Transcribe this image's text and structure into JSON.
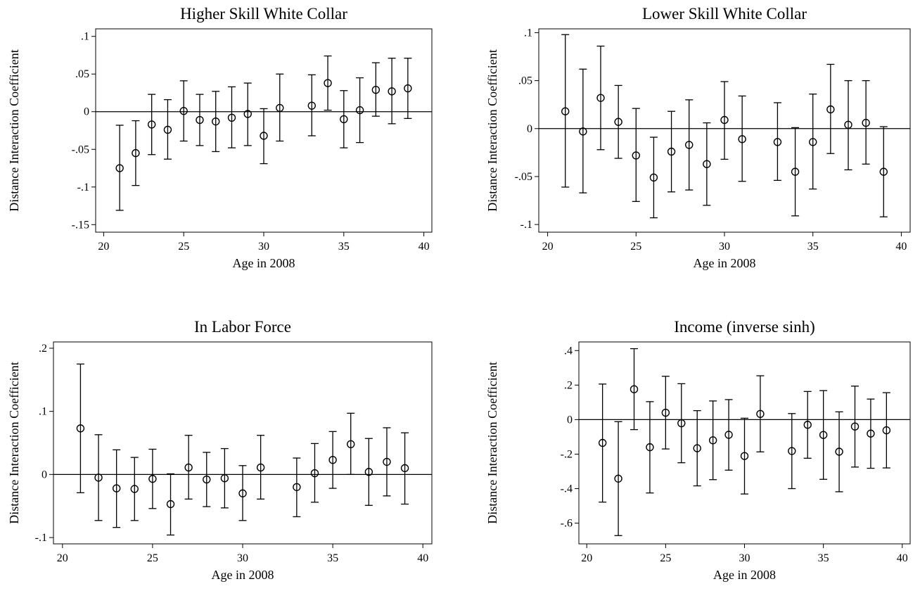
{
  "chart_data": [
    {
      "type": "scatter",
      "title": "Higher Skill White Collar",
      "xlabel": "Age in 2008",
      "ylabel": "Distance Interaction Coefficient",
      "xlim": [
        19.5,
        40.5
      ],
      "ylim": [
        -0.16,
        0.11
      ],
      "xticks": [
        20,
        25,
        30,
        35,
        40
      ],
      "xtick_labels": [
        "20",
        "25",
        "30",
        "35",
        "40"
      ],
      "yticks": [
        -0.15,
        -0.1,
        -0.05,
        0,
        0.05,
        0.1
      ],
      "ytick_labels": [
        "-.15",
        "-.1",
        "-.05",
        "0",
        ".05",
        ".1"
      ],
      "reference_line": 0,
      "points": [
        {
          "x": 21,
          "y": -0.075,
          "lo": -0.131,
          "hi": -0.018
        },
        {
          "x": 22,
          "y": -0.055,
          "lo": -0.098,
          "hi": -0.012
        },
        {
          "x": 23,
          "y": -0.017,
          "lo": -0.057,
          "hi": 0.023
        },
        {
          "x": 24,
          "y": -0.024,
          "lo": -0.063,
          "hi": 0.016
        },
        {
          "x": 25,
          "y": 0.001,
          "lo": -0.039,
          "hi": 0.041
        },
        {
          "x": 26,
          "y": -0.011,
          "lo": -0.045,
          "hi": 0.023
        },
        {
          "x": 27,
          "y": -0.013,
          "lo": -0.053,
          "hi": 0.027
        },
        {
          "x": 28,
          "y": -0.008,
          "lo": -0.048,
          "hi": 0.033
        },
        {
          "x": 29,
          "y": -0.003,
          "lo": -0.045,
          "hi": 0.038
        },
        {
          "x": 30,
          "y": -0.032,
          "lo": -0.069,
          "hi": 0.004
        },
        {
          "x": 31,
          "y": 0.005,
          "lo": -0.039,
          "hi": 0.05
        },
        {
          "x": 33,
          "y": 0.008,
          "lo": -0.032,
          "hi": 0.049
        },
        {
          "x": 34,
          "y": 0.038,
          "lo": 0.002,
          "hi": 0.074
        },
        {
          "x": 35,
          "y": -0.01,
          "lo": -0.048,
          "hi": 0.028
        },
        {
          "x": 36,
          "y": 0.002,
          "lo": -0.041,
          "hi": 0.045
        },
        {
          "x": 37,
          "y": 0.029,
          "lo": -0.006,
          "hi": 0.065
        },
        {
          "x": 38,
          "y": 0.027,
          "lo": -0.016,
          "hi": 0.071
        },
        {
          "x": 39,
          "y": 0.031,
          "lo": -0.009,
          "hi": 0.071
        }
      ]
    },
    {
      "type": "scatter",
      "title": "Lower Skill White Collar",
      "xlabel": "Age in 2008",
      "ylabel": "Distance Interaction Coefficient",
      "xlim": [
        19.5,
        40.5
      ],
      "ylim": [
        -0.108,
        0.104
      ],
      "xticks": [
        20,
        25,
        30,
        35,
        40
      ],
      "xtick_labels": [
        "20",
        "25",
        "30",
        "35",
        "40"
      ],
      "yticks": [
        -0.1,
        -0.05,
        0,
        0.05,
        0.1
      ],
      "ytick_labels": [
        "-.1",
        "-.05",
        "0",
        ".05",
        ".1"
      ],
      "reference_line": 0,
      "points": [
        {
          "x": 21,
          "y": 0.018,
          "lo": -0.061,
          "hi": 0.098
        },
        {
          "x": 22,
          "y": -0.003,
          "lo": -0.067,
          "hi": 0.062
        },
        {
          "x": 23,
          "y": 0.032,
          "lo": -0.022,
          "hi": 0.086
        },
        {
          "x": 24,
          "y": 0.007,
          "lo": -0.031,
          "hi": 0.045
        },
        {
          "x": 25,
          "y": -0.028,
          "lo": -0.076,
          "hi": 0.021
        },
        {
          "x": 26,
          "y": -0.051,
          "lo": -0.093,
          "hi": -0.009
        },
        {
          "x": 27,
          "y": -0.024,
          "lo": -0.066,
          "hi": 0.018
        },
        {
          "x": 28,
          "y": -0.017,
          "lo": -0.064,
          "hi": 0.03
        },
        {
          "x": 29,
          "y": -0.037,
          "lo": -0.08,
          "hi": 0.006
        },
        {
          "x": 30,
          "y": 0.009,
          "lo": -0.032,
          "hi": 0.049
        },
        {
          "x": 31,
          "y": -0.011,
          "lo": -0.055,
          "hi": 0.034
        },
        {
          "x": 33,
          "y": -0.014,
          "lo": -0.054,
          "hi": 0.027
        },
        {
          "x": 34,
          "y": -0.045,
          "lo": -0.091,
          "hi": 0.001
        },
        {
          "x": 35,
          "y": -0.014,
          "lo": -0.063,
          "hi": 0.036
        },
        {
          "x": 36,
          "y": 0.02,
          "lo": -0.026,
          "hi": 0.067
        },
        {
          "x": 37,
          "y": 0.004,
          "lo": -0.043,
          "hi": 0.05
        },
        {
          "x": 38,
          "y": 0.006,
          "lo": -0.037,
          "hi": 0.05
        },
        {
          "x": 39,
          "y": -0.045,
          "lo": -0.092,
          "hi": 0.002
        }
      ]
    },
    {
      "type": "scatter",
      "title": "In Labor Force",
      "xlabel": "Age in 2008",
      "ylabel": "Distance Interaction Coefficient",
      "xlim": [
        19.5,
        40.5
      ],
      "ylim": [
        -0.11,
        0.21
      ],
      "xticks": [
        20,
        25,
        30,
        35,
        40
      ],
      "xtick_labels": [
        "20",
        "25",
        "30",
        "35",
        "40"
      ],
      "yticks": [
        -0.1,
        0,
        0.1,
        0.2
      ],
      "ytick_labels": [
        "-.1",
        "0",
        ".1",
        ".2"
      ],
      "reference_line": 0,
      "points": [
        {
          "x": 21,
          "y": 0.073,
          "lo": -0.029,
          "hi": 0.175
        },
        {
          "x": 22,
          "y": -0.005,
          "lo": -0.073,
          "hi": 0.063
        },
        {
          "x": 23,
          "y": -0.022,
          "lo": -0.084,
          "hi": 0.039
        },
        {
          "x": 24,
          "y": -0.023,
          "lo": -0.073,
          "hi": 0.027
        },
        {
          "x": 25,
          "y": -0.007,
          "lo": -0.054,
          "hi": 0.04
        },
        {
          "x": 26,
          "y": -0.047,
          "lo": -0.096,
          "hi": 0.001
        },
        {
          "x": 27,
          "y": 0.011,
          "lo": -0.039,
          "hi": 0.062
        },
        {
          "x": 28,
          "y": -0.008,
          "lo": -0.051,
          "hi": 0.035
        },
        {
          "x": 29,
          "y": -0.006,
          "lo": -0.053,
          "hi": 0.041
        },
        {
          "x": 30,
          "y": -0.03,
          "lo": -0.073,
          "hi": 0.014
        },
        {
          "x": 31,
          "y": 0.011,
          "lo": -0.039,
          "hi": 0.062
        },
        {
          "x": 33,
          "y": -0.02,
          "lo": -0.067,
          "hi": 0.026
        },
        {
          "x": 34,
          "y": 0.002,
          "lo": -0.044,
          "hi": 0.049
        },
        {
          "x": 35,
          "y": 0.023,
          "lo": -0.022,
          "hi": 0.068
        },
        {
          "x": 36,
          "y": 0.048,
          "lo": 0.0,
          "hi": 0.097
        },
        {
          "x": 37,
          "y": 0.004,
          "lo": -0.049,
          "hi": 0.057
        },
        {
          "x": 38,
          "y": 0.02,
          "lo": -0.034,
          "hi": 0.074
        },
        {
          "x": 39,
          "y": 0.01,
          "lo": -0.047,
          "hi": 0.066
        }
      ]
    },
    {
      "type": "scatter",
      "title": "Income (inverse sinh)",
      "xlabel": "Age in 2008",
      "ylabel": "Distance Interaction Coefficient",
      "xlim": [
        19.5,
        40.5
      ],
      "ylim": [
        -0.72,
        0.45
      ],
      "xticks": [
        20,
        25,
        30,
        35,
        40
      ],
      "xtick_labels": [
        "20",
        "25",
        "30",
        "35",
        "40"
      ],
      "yticks": [
        -0.6,
        -0.4,
        -0.2,
        0,
        0.2,
        0.4
      ],
      "ytick_labels": [
        "-.6",
        "-.4",
        "-.2",
        "0",
        ".2",
        ".4"
      ],
      "reference_line": 0,
      "points": [
        {
          "x": 21,
          "y": -0.135,
          "lo": -0.478,
          "hi": 0.206
        },
        {
          "x": 22,
          "y": -0.342,
          "lo": -0.672,
          "hi": -0.012
        },
        {
          "x": 23,
          "y": 0.176,
          "lo": -0.058,
          "hi": 0.411
        },
        {
          "x": 24,
          "y": -0.16,
          "lo": -0.425,
          "hi": 0.104
        },
        {
          "x": 25,
          "y": 0.04,
          "lo": -0.17,
          "hi": 0.251
        },
        {
          "x": 26,
          "y": -0.021,
          "lo": -0.25,
          "hi": 0.208
        },
        {
          "x": 27,
          "y": -0.166,
          "lo": -0.384,
          "hi": 0.052
        },
        {
          "x": 28,
          "y": -0.12,
          "lo": -0.348,
          "hi": 0.108
        },
        {
          "x": 29,
          "y": -0.088,
          "lo": -0.293,
          "hi": 0.116
        },
        {
          "x": 30,
          "y": -0.211,
          "lo": -0.431,
          "hi": 0.008
        },
        {
          "x": 31,
          "y": 0.033,
          "lo": -0.187,
          "hi": 0.254
        },
        {
          "x": 33,
          "y": -0.182,
          "lo": -0.4,
          "hi": 0.035
        },
        {
          "x": 34,
          "y": -0.03,
          "lo": -0.224,
          "hi": 0.163
        },
        {
          "x": 35,
          "y": -0.089,
          "lo": -0.346,
          "hi": 0.168
        },
        {
          "x": 36,
          "y": -0.186,
          "lo": -0.418,
          "hi": 0.045
        },
        {
          "x": 37,
          "y": -0.04,
          "lo": -0.275,
          "hi": 0.194
        },
        {
          "x": 38,
          "y": -0.081,
          "lo": -0.282,
          "hi": 0.119
        },
        {
          "x": 39,
          "y": -0.062,
          "lo": -0.28,
          "hi": 0.156
        }
      ]
    }
  ]
}
